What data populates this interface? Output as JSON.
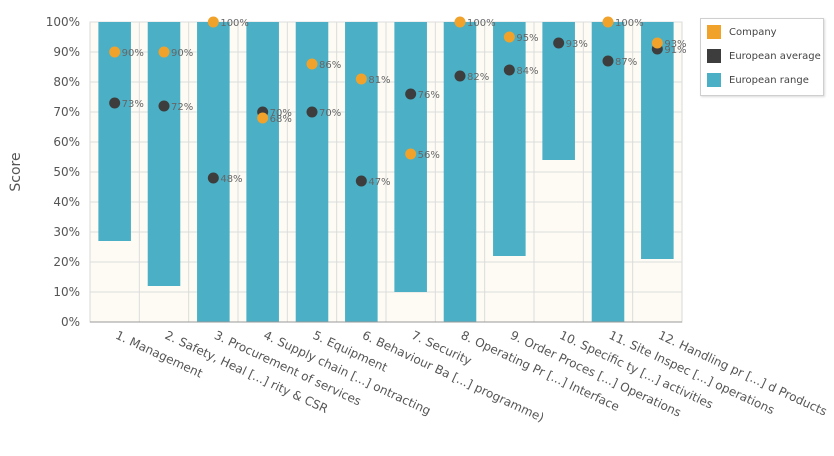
{
  "chart_data": {
    "type": "bar",
    "title": "",
    "xlabel": "",
    "ylabel": "Score",
    "ylim": [
      0,
      100
    ],
    "yticks": [
      "0%",
      "10%",
      "20%",
      "30%",
      "40%",
      "50%",
      "60%",
      "70%",
      "80%",
      "90%",
      "100%"
    ],
    "grid": true,
    "legend_position": "top-right",
    "categories": [
      "1. Management",
      "2. Safety, Heal [...] rity & CSR",
      "3. Procurement of services",
      "4. Supply chain [...] ontracting",
      "5. Equipment",
      "6. Behaviour Ba [...] programme)",
      "7. Security",
      "8. Operating Pr [...] Interface",
      "9. Order Proces [...] Operations",
      "10. Specific ty [...] activities",
      "11. Site Inspec [...] operations",
      "12. Handling pr [...] d Products"
    ],
    "series": [
      {
        "name": "European range",
        "type": "range",
        "color": "#4bafc5",
        "low": [
          27,
          12,
          0,
          0,
          0,
          0,
          10,
          0,
          22,
          54,
          0,
          21
        ],
        "high": [
          100,
          100,
          100,
          100,
          100,
          100,
          100,
          100,
          100,
          100,
          100,
          100
        ]
      },
      {
        "name": "European average",
        "type": "scatter",
        "color": "#3d3d3d",
        "values": [
          73,
          72,
          48,
          70,
          70,
          47,
          76,
          82,
          84,
          93,
          87,
          91
        ],
        "labels": [
          "73%",
          "72%",
          "48%",
          "70%",
          "70%",
          "47%",
          "76%",
          "82%",
          "84%",
          "93%",
          "87%",
          "91%"
        ]
      },
      {
        "name": "Company",
        "type": "scatter",
        "color": "#f0a22b",
        "values": [
          90,
          90,
          100,
          68,
          86,
          81,
          56,
          100,
          95,
          null,
          100,
          93
        ],
        "labels": [
          "90%",
          "90%",
          "100%",
          "68%",
          "86%",
          "81%",
          "56%",
          "100%",
          "95%",
          null,
          "100%",
          "93%"
        ]
      }
    ]
  },
  "legend": {
    "items": [
      {
        "label": "Company",
        "color": "#f0a22b"
      },
      {
        "label": "European average",
        "color": "#3d3d3d"
      },
      {
        "label": "European range",
        "color": "#4bafc5"
      }
    ]
  }
}
